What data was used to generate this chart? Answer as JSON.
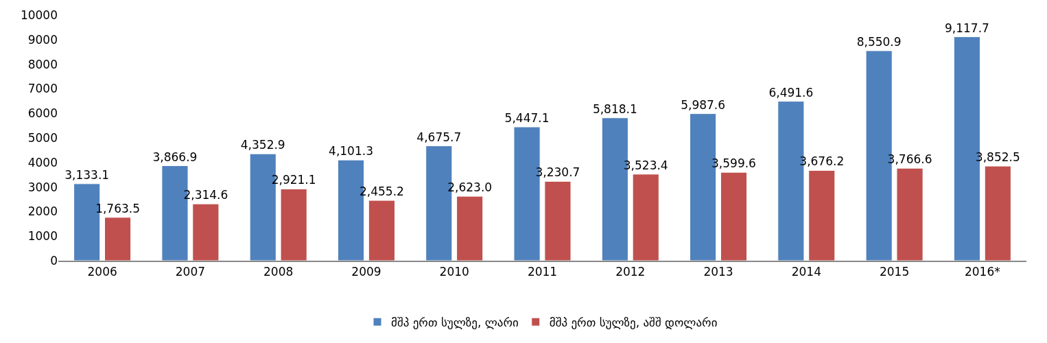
{
  "chart_data": {
    "type": "bar",
    "categories": [
      "2006",
      "2007",
      "2008",
      "2009",
      "2010",
      "2011",
      "2012",
      "2013",
      "2014",
      "2015",
      "2016*"
    ],
    "series": [
      {
        "name": "მშპ ერთ სულზე, ლარი",
        "color": "#4f81bd",
        "values": [
          3133.1,
          3866.9,
          4352.9,
          4101.3,
          4675.7,
          5447.1,
          5818.1,
          5987.6,
          6491.6,
          8550.9,
          9117.7
        ],
        "value_labels": [
          "3,133.1",
          "3,866.9",
          "4,352.9",
          "4,101.3",
          "4,675.7",
          "5,447.1",
          "5,818.1",
          "5,987.6",
          "6,491.6",
          "8,550.9",
          "9,117.7"
        ]
      },
      {
        "name": "მშპ ერთ სულზე, აშშ დოლარი",
        "color": "#c0504d",
        "values": [
          1763.5,
          2314.6,
          2921.1,
          2455.2,
          2623.0,
          3230.7,
          3523.4,
          3599.6,
          3676.2,
          3766.6,
          3852.5
        ],
        "value_labels": [
          "1,763.5",
          "2,314.6",
          "2,921.1",
          "2,455.2",
          "2,623.0",
          "3,230.7",
          "3,523.4",
          "3,599.6",
          "3,676.2",
          "3,766.6",
          "3,852.5"
        ]
      }
    ],
    "ylim": [
      0,
      10000
    ],
    "yticks": [
      0,
      1000,
      2000,
      3000,
      4000,
      5000,
      6000,
      7000,
      8000,
      9000,
      10000
    ],
    "legend": "bottom"
  }
}
